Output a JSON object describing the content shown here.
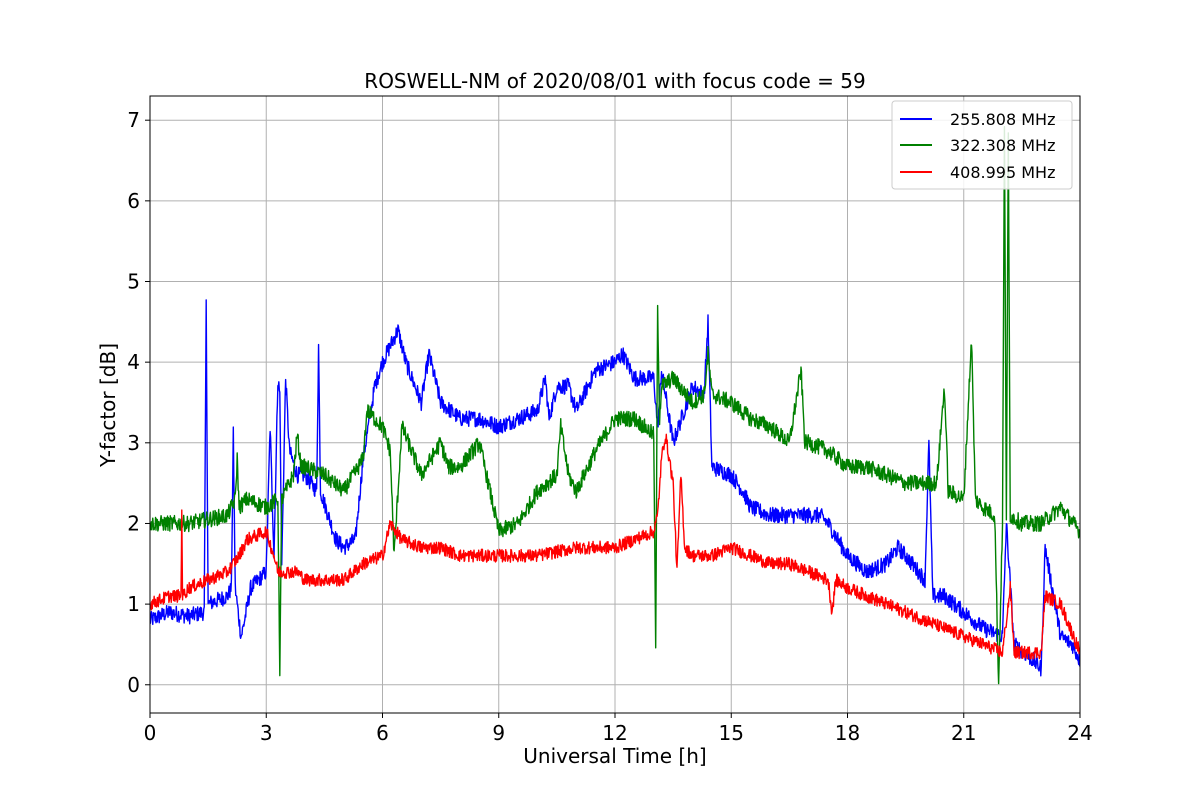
{
  "chart_data": {
    "type": "line",
    "title": "ROSWELL-NM of 2020/08/01 with focus code = 59",
    "xlabel": "Universal Time [h]",
    "ylabel": "Y-factor [dB]",
    "xlim": [
      0,
      24
    ],
    "ylim": [
      -0.35,
      7.3
    ],
    "xticks": [
      0,
      3,
      6,
      9,
      12,
      15,
      18,
      21,
      24
    ],
    "yticks": [
      0,
      1,
      2,
      3,
      4,
      5,
      6,
      7
    ],
    "grid": true,
    "legend_position": "top-right",
    "series": [
      {
        "name": "255.808 MHz",
        "color": "#0000ff",
        "noise": 0.1,
        "x": [
          0,
          0.5,
          1,
          1.4,
          1.45,
          1.5,
          2,
          2.1,
          2.15,
          2.2,
          2.35,
          2.4,
          2.6,
          3,
          3.1,
          3.2,
          3.3,
          3.35,
          3.4,
          3.5,
          3.6,
          3.8,
          4,
          4.3,
          4.35,
          4.4,
          4.8,
          5,
          5.3,
          5.5,
          5.8,
          6,
          6.2,
          6.4,
          6.6,
          7,
          7.2,
          7.5,
          8,
          8.5,
          9,
          9.5,
          10,
          10.2,
          10.3,
          10.5,
          10.8,
          11,
          11.5,
          12,
          12.2,
          12.5,
          13,
          13.1,
          13.2,
          13.5,
          14,
          14.3,
          14.4,
          14.5,
          15,
          15.3,
          15.5,
          16,
          16.5,
          17,
          17.3,
          17.5,
          18,
          18.5,
          19,
          19.3,
          19.5,
          20,
          20.1,
          20.2,
          20.5,
          21,
          21.5,
          22,
          22.1,
          22.3,
          22.8,
          23,
          23.1,
          23.5,
          23.8,
          24
        ],
        "y": [
          0.8,
          0.9,
          0.85,
          0.9,
          4.7,
          1.0,
          1.1,
          1.2,
          3.1,
          1.2,
          0.6,
          0.7,
          1.2,
          1.4,
          3.2,
          1.6,
          3.8,
          3.6,
          1.5,
          3.8,
          2.9,
          2.6,
          2.6,
          2.4,
          4.2,
          2.4,
          1.8,
          1.7,
          1.8,
          2.8,
          3.7,
          4.0,
          4.2,
          4.4,
          4.0,
          3.5,
          4.1,
          3.5,
          3.3,
          3.3,
          3.2,
          3.3,
          3.4,
          3.8,
          3.3,
          3.7,
          3.7,
          3.4,
          3.9,
          4.0,
          4.1,
          3.8,
          3.8,
          3.2,
          3.9,
          3.0,
          3.7,
          3.6,
          4.5,
          2.7,
          2.6,
          2.4,
          2.2,
          2.1,
          2.1,
          2.1,
          2.1,
          2.0,
          1.6,
          1.4,
          1.5,
          1.7,
          1.6,
          1.3,
          3.0,
          1.1,
          1.1,
          0.9,
          0.7,
          0.6,
          2.0,
          0.5,
          0.3,
          0.2,
          1.7,
          0.6,
          0.5,
          0.3
        ]
      },
      {
        "name": "322.308 MHz",
        "color": "#008000",
        "noise": 0.1,
        "x": [
          0,
          0.5,
          1,
          1.5,
          2,
          2.2,
          2.25,
          2.3,
          2.5,
          3,
          3.3,
          3.35,
          3.4,
          3.7,
          3.8,
          3.9,
          4,
          4.5,
          5,
          5.5,
          5.6,
          6,
          6.2,
          6.3,
          6.5,
          7,
          7.5,
          7.7,
          8,
          8.5,
          9,
          9.5,
          10,
          10.5,
          10.6,
          10.8,
          11,
          11.5,
          12,
          12.5,
          13,
          13.05,
          13.1,
          13.15,
          13.2,
          13.5,
          14,
          14.3,
          14.4,
          14.5,
          15,
          15.5,
          16,
          16.5,
          16.8,
          16.9,
          17,
          17.5,
          18,
          18.5,
          19,
          19.5,
          20,
          20.3,
          20.5,
          20.6,
          21,
          21.2,
          21.3,
          21.5,
          21.8,
          21.9,
          22,
          22.05,
          22.1,
          22.15,
          22.2,
          22.5,
          23,
          23.5,
          24
        ],
        "y": [
          2.0,
          2.0,
          2.0,
          2.05,
          2.1,
          2.3,
          2.8,
          2.2,
          2.3,
          2.2,
          2.3,
          0.2,
          2.3,
          2.6,
          3.1,
          2.7,
          2.7,
          2.6,
          2.4,
          2.8,
          3.4,
          3.2,
          2.9,
          1.6,
          3.2,
          2.6,
          3.0,
          2.7,
          2.7,
          3.0,
          1.9,
          2.0,
          2.4,
          2.6,
          3.2,
          2.6,
          2.4,
          2.9,
          3.3,
          3.3,
          3.1,
          0.4,
          4.7,
          3.3,
          3.7,
          3.8,
          3.5,
          3.6,
          4.1,
          3.6,
          3.5,
          3.3,
          3.2,
          3.0,
          3.9,
          3.0,
          3.0,
          2.9,
          2.7,
          2.7,
          2.6,
          2.5,
          2.5,
          2.5,
          3.7,
          2.4,
          2.3,
          4.3,
          2.3,
          2.2,
          2.1,
          0.0,
          2.0,
          6.9,
          2.1,
          6.8,
          2.1,
          2.0,
          2.0,
          2.2,
          1.9
        ]
      },
      {
        "name": "408.995 MHz",
        "color": "#ff0000",
        "noise": 0.08,
        "x": [
          0,
          0.5,
          0.8,
          0.82,
          0.84,
          1,
          1.5,
          2,
          2.3,
          2.5,
          3,
          3.2,
          3.3,
          3.6,
          3.8,
          4,
          4.5,
          5,
          5.5,
          6,
          6.2,
          6.5,
          7,
          7.5,
          8,
          9,
          10,
          11,
          12,
          12.5,
          13,
          13.1,
          13.2,
          13.3,
          13.5,
          13.6,
          13.7,
          13.8,
          14,
          14.5,
          15,
          15.5,
          16,
          16.5,
          17,
          17.5,
          17.6,
          17.7,
          18,
          18.5,
          19,
          19.5,
          20,
          20.5,
          21,
          21.5,
          22,
          22.2,
          22.3,
          22.5,
          23,
          23.1,
          23.5,
          24
        ],
        "y": [
          1.0,
          1.1,
          1.1,
          2.2,
          1.1,
          1.2,
          1.3,
          1.4,
          1.6,
          1.8,
          1.9,
          1.6,
          1.4,
          1.4,
          1.4,
          1.3,
          1.3,
          1.3,
          1.5,
          1.6,
          2.0,
          1.8,
          1.7,
          1.7,
          1.6,
          1.6,
          1.6,
          1.7,
          1.7,
          1.8,
          1.9,
          2.1,
          2.8,
          3.1,
          2.5,
          1.4,
          2.6,
          1.7,
          1.6,
          1.6,
          1.7,
          1.6,
          1.5,
          1.5,
          1.4,
          1.3,
          0.9,
          1.3,
          1.2,
          1.1,
          1.0,
          0.9,
          0.8,
          0.7,
          0.6,
          0.5,
          0.4,
          1.2,
          0.4,
          0.4,
          0.4,
          1.1,
          1.0,
          0.4
        ]
      }
    ]
  }
}
